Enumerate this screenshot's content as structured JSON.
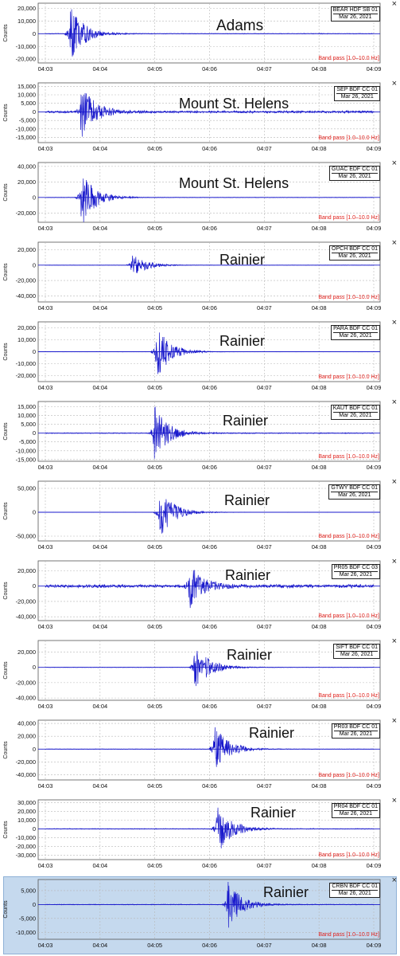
{
  "chart_data": [
    {
      "type": "line",
      "station": "BEAR HDF SB 01",
      "date": "Mar 26, 2021",
      "filter": "Band pass [1.0–10.0 Hz]",
      "volcano": "Adams",
      "ylabel": "Counts",
      "yticks": [
        20000,
        10000,
        0,
        -10000,
        -20000
      ],
      "ylim": [
        -23000,
        24000
      ],
      "xticks": [
        "04:03",
        "04:04",
        "04:05",
        "04:06",
        "04:07",
        "04:08",
        "04:09"
      ],
      "event_time": 0.42,
      "peak_amplitude": 22000,
      "noise": 300,
      "grid": true,
      "highlight": false
    },
    {
      "type": "line",
      "station": "SEP BDF CC 01",
      "date": "Mar 26, 2021",
      "filter": "Band pass [1.0–10.0 Hz]",
      "volcano": "Mount St. Helens",
      "ylabel": "Counts",
      "yticks": [
        15000,
        10000,
        5000,
        0,
        -5000,
        -10000,
        -15000
      ],
      "ylim": [
        -18000,
        17000
      ],
      "xticks": [
        "04:03",
        "04:04",
        "04:05",
        "04:06",
        "04:07",
        "04:08",
        "04:09"
      ],
      "event_time": 0.62,
      "peak_amplitude": 16000,
      "noise": 800,
      "grid": true,
      "highlight": false
    },
    {
      "type": "line",
      "station": "GUAC EDF CC 01",
      "date": "Mar 26, 2021",
      "filter": "Band pass [1.0–10.0 Hz]",
      "volcano": "Mount St. Helens",
      "ylabel": "Counts",
      "yticks": [
        40000,
        20000,
        0,
        -20000
      ],
      "ylim": [
        -32000,
        45000
      ],
      "xticks": [
        "04:03",
        "04:04",
        "04:05",
        "04:06",
        "04:07",
        "04:08",
        "04:09"
      ],
      "event_time": 0.62,
      "peak_amplitude": 38000,
      "noise": 300,
      "grid": true,
      "highlight": false
    },
    {
      "type": "line",
      "station": "OPCH BDF CC 01",
      "date": "Mar 26, 2021",
      "filter": "Band pass [1.0–10.0 Hz]",
      "volcano": "Rainier",
      "ylabel": "Counts",
      "yticks": [
        20000,
        0,
        -20000,
        -40000
      ],
      "ylim": [
        -48000,
        30000
      ],
      "xticks": [
        "04:03",
        "04:04",
        "04:05",
        "04:06",
        "04:07",
        "04:08",
        "04:09"
      ],
      "event_time": 1.55,
      "peak_amplitude": 16000,
      "noise": 200,
      "grid": true,
      "highlight": false
    },
    {
      "type": "line",
      "station": "PARA BDF CC 01",
      "date": "Mar 26, 2021",
      "filter": "Band pass [1.0–10.0 Hz]",
      "volcano": "Rainier",
      "ylabel": "Counts",
      "yticks": [
        20000,
        10000,
        0,
        -10000,
        -20000
      ],
      "ylim": [
        -25000,
        25000
      ],
      "xticks": [
        "04:03",
        "04:04",
        "04:05",
        "04:06",
        "04:07",
        "04:08",
        "04:09"
      ],
      "event_time": 2.0,
      "peak_amplitude": 22000,
      "noise": 200,
      "grid": true,
      "highlight": false
    },
    {
      "type": "line",
      "station": "KAUT BDF CC 01",
      "date": "Mar 26, 2021",
      "filter": "Band pass [1.0–10.0 Hz]",
      "volcano": "Rainier",
      "ylabel": "Counts",
      "yticks": [
        15000,
        10000,
        5000,
        0,
        -5000,
        -10000,
        -15000
      ],
      "ylim": [
        -16000,
        18000
      ],
      "xticks": [
        "04:03",
        "04:04",
        "04:05",
        "04:06",
        "04:07",
        "04:08",
        "04:09"
      ],
      "event_time": 1.95,
      "peak_amplitude": 16000,
      "noise": 300,
      "grid": true,
      "highlight": false
    },
    {
      "type": "line",
      "station": "GTWY BDF CC 01",
      "date": "Mar 26, 2021",
      "filter": "Band pass [1.0–10.0 Hz]",
      "volcano": "Rainier",
      "ylabel": "Counts",
      "yticks": [
        50000,
        0,
        -50000
      ],
      "ylim": [
        -60000,
        65000
      ],
      "xticks": [
        "04:03",
        "04:04",
        "04:05",
        "04:06",
        "04:07",
        "04:08",
        "04:09"
      ],
      "event_time": 2.05,
      "peak_amplitude": 55000,
      "noise": 400,
      "grid": true,
      "highlight": false
    },
    {
      "type": "line",
      "station": "PR05 BDF CC 03",
      "date": "Mar 26, 2021",
      "filter": "Band pass [1.0–10.0 Hz]",
      "volcano": "Rainier",
      "ylabel": "Counts",
      "yticks": [
        20000,
        0,
        -20000,
        -40000
      ],
      "ylim": [
        -45000,
        33000
      ],
      "xticks": [
        "04:03",
        "04:04",
        "04:05",
        "04:06",
        "04:07",
        "04:08",
        "04:09"
      ],
      "event_time": 2.6,
      "peak_amplitude": 28000,
      "noise": 2500,
      "grid": true,
      "highlight": false
    },
    {
      "type": "line",
      "station": "SIFT BDF CC 01",
      "date": "Mar 26, 2021",
      "filter": "Band pass [1.0–10.0 Hz]",
      "volcano": "Rainier",
      "ylabel": "Counts",
      "yticks": [
        20000,
        0,
        -20000,
        -40000
      ],
      "ylim": [
        -43000,
        35000
      ],
      "xticks": [
        "04:03",
        "04:04",
        "04:05",
        "04:06",
        "04:07",
        "04:08",
        "04:09"
      ],
      "event_time": 2.7,
      "peak_amplitude": 33000,
      "noise": 300,
      "grid": true,
      "highlight": false
    },
    {
      "type": "line",
      "station": "PR03 BDF CC 01",
      "date": "Mar 26, 2021",
      "filter": "Band pass [1.0–10.0 Hz]",
      "volcano": "Rainier",
      "ylabel": "Counts",
      "yticks": [
        40000,
        20000,
        0,
        -20000,
        -40000
      ],
      "ylim": [
        -48000,
        45000
      ],
      "xticks": [
        "04:03",
        "04:04",
        "04:05",
        "04:06",
        "04:07",
        "04:08",
        "04:09"
      ],
      "event_time": 3.05,
      "peak_amplitude": 40000,
      "noise": 400,
      "grid": true,
      "highlight": false
    },
    {
      "type": "line",
      "station": "PR04 BDF CC 01",
      "date": "Mar 26, 2021",
      "filter": "Band pass [1.0–10.0 Hz]",
      "volcano": "Rainier",
      "ylabel": "Counts",
      "yticks": [
        30000,
        20000,
        10000,
        0,
        -10000,
        -20000,
        -30000
      ],
      "ylim": [
        -35000,
        33000
      ],
      "xticks": [
        "04:03",
        "04:04",
        "04:05",
        "04:06",
        "04:07",
        "04:08",
        "04:09"
      ],
      "event_time": 3.1,
      "peak_amplitude": 30000,
      "noise": 500,
      "grid": true,
      "highlight": false
    },
    {
      "type": "line",
      "station": "CRBN BDF CC 01",
      "date": "Mar 26, 2021",
      "filter": "Band pass [1.0–10.0 Hz]",
      "volcano": "Rainier",
      "ylabel": "Counts",
      "yticks": [
        5000,
        0,
        -5000,
        -10000
      ],
      "ylim": [
        -12500,
        9000
      ],
      "xticks": [
        "04:03",
        "04:04",
        "04:05",
        "04:06",
        "04:07",
        "04:08",
        "04:09"
      ],
      "event_time": 3.3,
      "peak_amplitude": 8500,
      "noise": 150,
      "grid": true,
      "highlight": true
    }
  ],
  "close_symbol": "×",
  "colors": {
    "trace": "#1a1acc",
    "grid": "#b8b8b8",
    "filter": "#e0201b",
    "highlight": "#c5d9ee"
  }
}
